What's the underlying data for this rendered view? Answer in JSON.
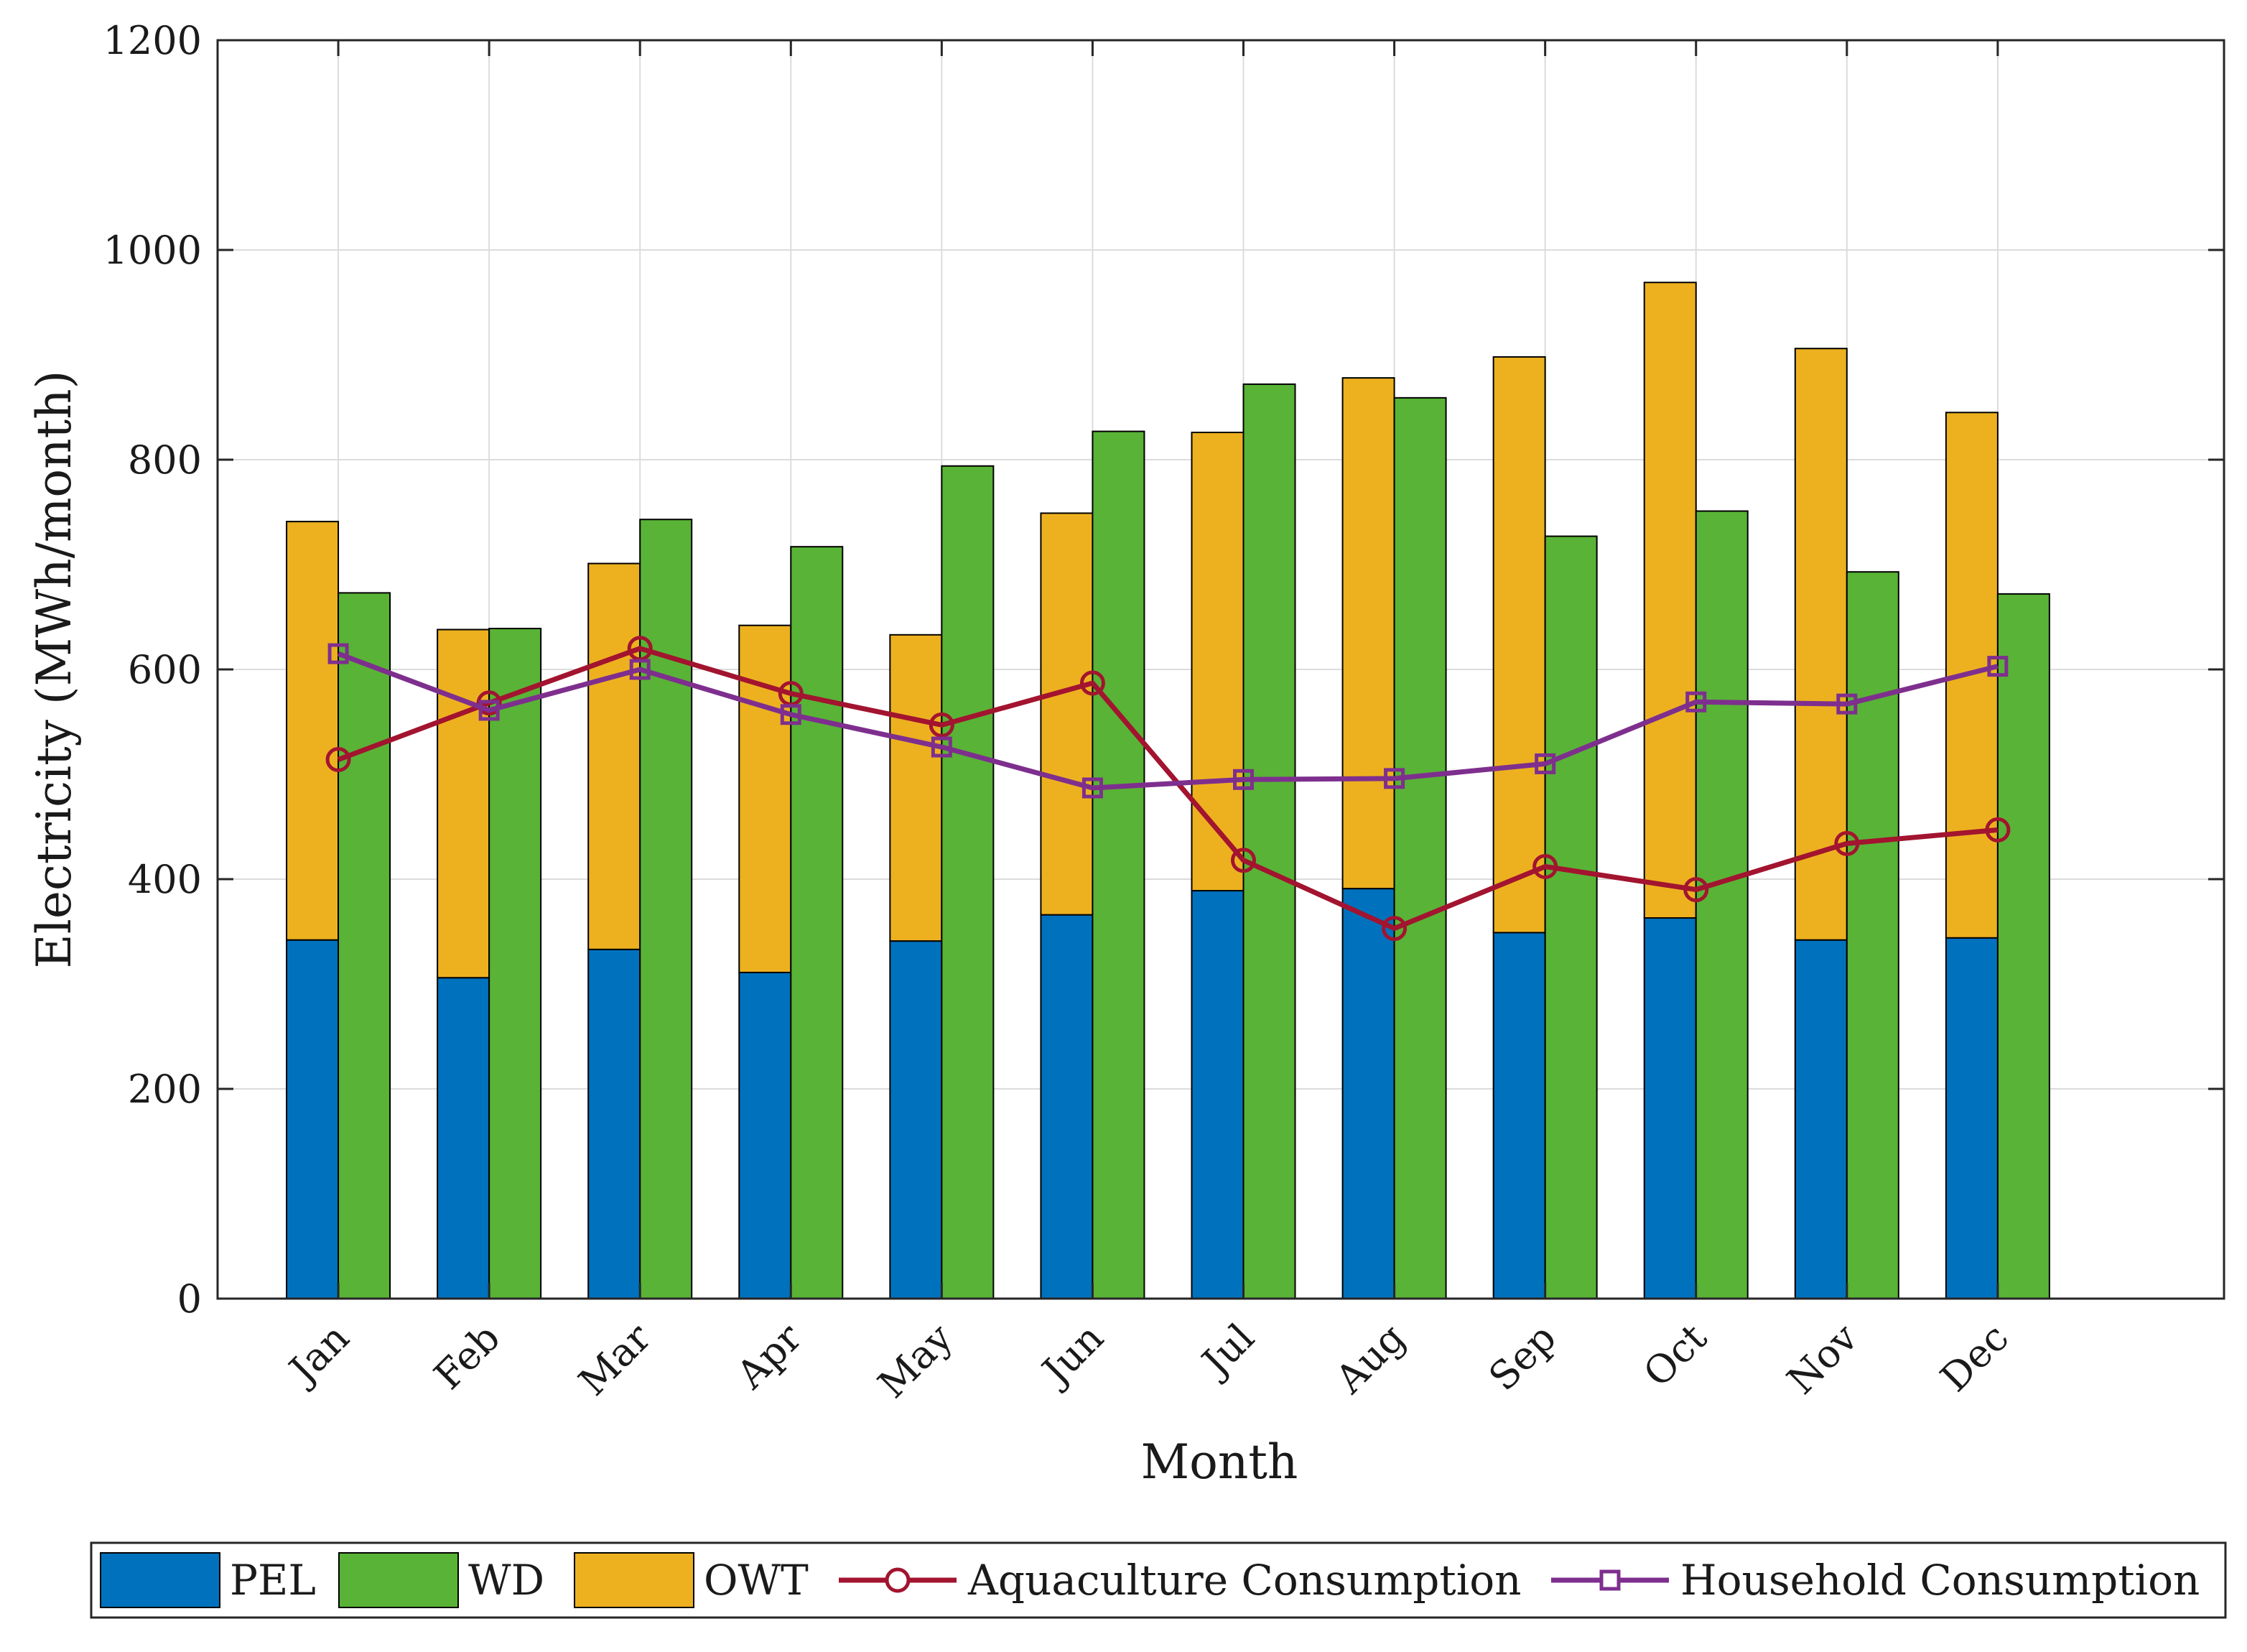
{
  "chart_data": {
    "type": "bar",
    "xlabel": "Month",
    "ylabel": "Electricity (MWh/month)",
    "ylim": [
      0,
      1200
    ],
    "yticks": [
      0,
      200,
      400,
      600,
      800,
      1000,
      1200
    ],
    "grid": true,
    "legend_position": "bottom",
    "categories": [
      "Jan",
      "Feb",
      "Mar",
      "Apr",
      "May",
      "Jun",
      "Jul",
      "Aug",
      "Sep",
      "Oct",
      "Nov",
      "Dec"
    ],
    "stacked_bar": {
      "series": [
        {
          "name": "PEL",
          "color": "#0072BD",
          "values": [
            342,
            306,
            333,
            311,
            341,
            366,
            389,
            391,
            349,
            363,
            342,
            344
          ]
        },
        {
          "name": "OWT",
          "color": "#EDB120",
          "values": [
            399,
            332,
            368,
            331,
            292,
            383,
            437,
            487,
            549,
            606,
            564,
            501
          ]
        }
      ]
    },
    "bar": {
      "series": [
        {
          "name": "WD",
          "color": "#59B336",
          "values": [
            673,
            639,
            743,
            717,
            794,
            827,
            872,
            859,
            727,
            751,
            693,
            672
          ]
        }
      ]
    },
    "lines": [
      {
        "name": "Aquaculture Consumption",
        "color": "#A2142F",
        "marker": "circle",
        "values": [
          514,
          568,
          620,
          577,
          547,
          587,
          418,
          353,
          412,
          390,
          434,
          447
        ]
      },
      {
        "name": "Household Consumption",
        "color": "#7E2F8E",
        "marker": "square",
        "values": [
          615,
          561,
          600,
          557,
          526,
          487,
          495,
          496,
          510,
          569,
          567,
          603
        ]
      }
    ],
    "legend": [
      "PEL",
      "WD",
      "OWT",
      "Aquaculture Consumption",
      "Household Consumption"
    ]
  }
}
